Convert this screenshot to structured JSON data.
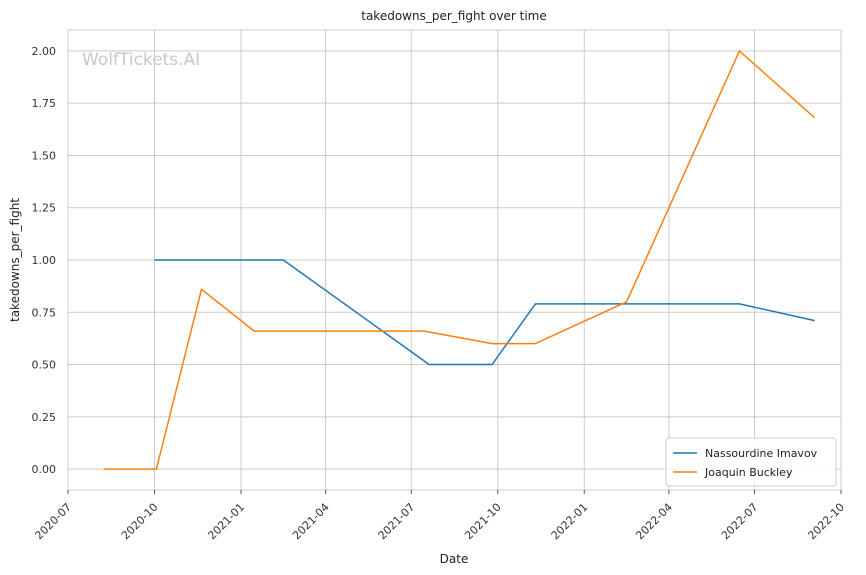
{
  "chart_data": {
    "type": "line",
    "title": "takedowns_per_fight over time",
    "xlabel": "Date",
    "ylabel": "takedowns_per_fight",
    "watermark": "WolfTickets.AI",
    "x_range": [
      "2020-07-01",
      "2022-10-01"
    ],
    "x_ticks": [
      "2020-07",
      "2020-10",
      "2021-01",
      "2021-04",
      "2021-07",
      "2021-10",
      "2022-01",
      "2022-04",
      "2022-07",
      "2022-10"
    ],
    "ylim": [
      -0.1,
      2.1
    ],
    "y_ticks": [
      "0.00",
      "0.25",
      "0.50",
      "0.75",
      "1.00",
      "1.25",
      "1.50",
      "1.75",
      "2.00"
    ],
    "grid": true,
    "legend_position": "bottom-right",
    "series": [
      {
        "name": "Nassourdine Imavov",
        "color": "#1f77b4",
        "points": [
          {
            "x": "2020-10-01",
            "y": 1.0
          },
          {
            "x": "2021-02-15",
            "y": 1.0
          },
          {
            "x": "2021-07-20",
            "y": 0.5
          },
          {
            "x": "2021-09-25",
            "y": 0.5
          },
          {
            "x": "2021-11-10",
            "y": 0.79
          },
          {
            "x": "2022-06-15",
            "y": 0.79
          },
          {
            "x": "2022-09-03",
            "y": 0.71
          }
        ]
      },
      {
        "name": "Joaquin Buckley",
        "color": "#ff7f0e",
        "points": [
          {
            "x": "2020-08-08",
            "y": 0.0
          },
          {
            "x": "2020-10-03",
            "y": 0.0
          },
          {
            "x": "2020-11-20",
            "y": 0.86
          },
          {
            "x": "2021-01-15",
            "y": 0.66
          },
          {
            "x": "2021-07-15",
            "y": 0.66
          },
          {
            "x": "2021-09-25",
            "y": 0.6
          },
          {
            "x": "2021-11-10",
            "y": 0.6
          },
          {
            "x": "2022-02-15",
            "y": 0.8
          },
          {
            "x": "2022-06-15",
            "y": 2.0
          },
          {
            "x": "2022-09-03",
            "y": 1.68
          }
        ]
      }
    ]
  }
}
